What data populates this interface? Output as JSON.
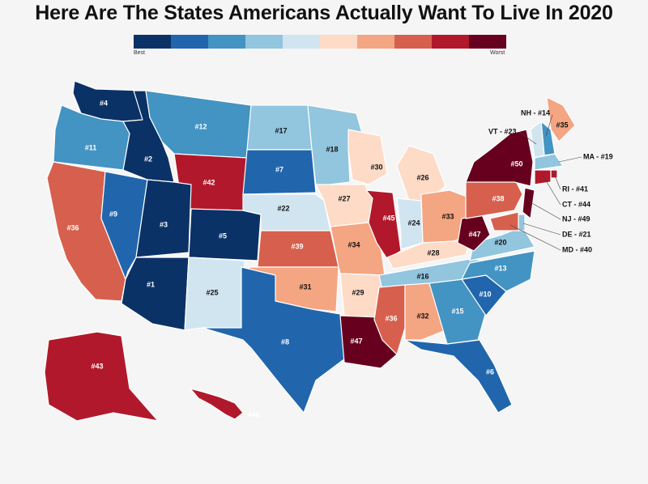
{
  "title": "Here Are The States Americans Actually Want To Live In 2020",
  "legend": {
    "best_label": "Best",
    "worst_label": "Worst",
    "colors": [
      "#0b3266",
      "#2166ac",
      "#4393c3",
      "#92c5de",
      "#d1e5f0",
      "#fddbc7",
      "#f4a582",
      "#d6604d",
      "#b2182b",
      "#67001f"
    ]
  },
  "states": [
    {
      "code": "WA",
      "label": "#4",
      "rank": 4,
      "color": "#0b3266"
    },
    {
      "code": "OR",
      "label": "#11",
      "rank": 11,
      "color": "#4393c3"
    },
    {
      "code": "CA",
      "label": "#36",
      "rank": 36,
      "color": "#d6604d"
    },
    {
      "code": "NV",
      "label": "#9",
      "rank": 9,
      "color": "#2166ac"
    },
    {
      "code": "ID",
      "label": "#2",
      "rank": 2,
      "color": "#0b3266"
    },
    {
      "code": "MT",
      "label": "#12",
      "rank": 12,
      "color": "#4393c3"
    },
    {
      "code": "WY",
      "label": "#42",
      "rank": 42,
      "color": "#b2182b"
    },
    {
      "code": "UT",
      "label": "#3",
      "rank": 3,
      "color": "#0b3266"
    },
    {
      "code": "CO",
      "label": "#5",
      "rank": 5,
      "color": "#0b3266"
    },
    {
      "code": "AZ",
      "label": "#1",
      "rank": 1,
      "color": "#0b3266"
    },
    {
      "code": "NM",
      "label": "#25",
      "rank": 25,
      "color": "#d1e5f0"
    },
    {
      "code": "ND",
      "label": "#17",
      "rank": 17,
      "color": "#92c5de"
    },
    {
      "code": "SD",
      "label": "#7",
      "rank": 7,
      "color": "#2166ac"
    },
    {
      "code": "NE",
      "label": "#22",
      "rank": 22,
      "color": "#d1e5f0"
    },
    {
      "code": "KS",
      "label": "#39",
      "rank": 39,
      "color": "#d6604d"
    },
    {
      "code": "OK",
      "label": "#31",
      "rank": 31,
      "color": "#f4a582"
    },
    {
      "code": "TX",
      "label": "#8",
      "rank": 8,
      "color": "#2166ac"
    },
    {
      "code": "MN",
      "label": "#18",
      "rank": 18,
      "color": "#92c5de"
    },
    {
      "code": "IA",
      "label": "#27",
      "rank": 27,
      "color": "#fddbc7"
    },
    {
      "code": "MO",
      "label": "#34",
      "rank": 34,
      "color": "#f4a582"
    },
    {
      "code": "AR",
      "label": "#29",
      "rank": 29,
      "color": "#fddbc7"
    },
    {
      "code": "LA",
      "label": "#47",
      "rank": 47,
      "color": "#67001f"
    },
    {
      "code": "WI",
      "label": "#30",
      "rank": 30,
      "color": "#fddbc7"
    },
    {
      "code": "IL",
      "label": "#45",
      "rank": 45,
      "color": "#b2182b"
    },
    {
      "code": "MI",
      "label": "#26",
      "rank": 26,
      "color": "#fddbc7"
    },
    {
      "code": "IN",
      "label": "#24",
      "rank": 24,
      "color": "#d1e5f0"
    },
    {
      "code": "OH",
      "label": "#33",
      "rank": 33,
      "color": "#f4a582"
    },
    {
      "code": "KY",
      "label": "#28",
      "rank": 28,
      "color": "#fddbc7"
    },
    {
      "code": "TN",
      "label": "#16",
      "rank": 16,
      "color": "#92c5de"
    },
    {
      "code": "MS",
      "label": "#36",
      "rank": 36,
      "color": "#d6604d"
    },
    {
      "code": "AL",
      "label": "#32",
      "rank": 32,
      "color": "#f4a582"
    },
    {
      "code": "GA",
      "label": "#15",
      "rank": 15,
      "color": "#4393c3"
    },
    {
      "code": "FL",
      "label": "#6",
      "rank": 6,
      "color": "#2166ac"
    },
    {
      "code": "SC",
      "label": "#10",
      "rank": 10,
      "color": "#2166ac"
    },
    {
      "code": "NC",
      "label": "#13",
      "rank": 13,
      "color": "#4393c3"
    },
    {
      "code": "VA",
      "label": "#20",
      "rank": 20,
      "color": "#92c5de"
    },
    {
      "code": "WV",
      "label": "#47",
      "rank": 47,
      "color": "#67001f"
    },
    {
      "code": "PA",
      "label": "#38",
      "rank": 38,
      "color": "#d6604d"
    },
    {
      "code": "NY",
      "label": "#50",
      "rank": 50,
      "color": "#67001f"
    },
    {
      "code": "ME",
      "label": "#35",
      "rank": 35,
      "color": "#f4a582"
    },
    {
      "code": "AK",
      "label": "#43",
      "rank": 43,
      "color": "#b2182b"
    },
    {
      "code": "HI",
      "label": "#46",
      "rank": 46,
      "color": "#b2182b"
    },
    {
      "code": "NH",
      "label": "",
      "rank": 14,
      "color": "#4393c3"
    },
    {
      "code": "VT",
      "label": "",
      "rank": 23,
      "color": "#d1e5f0"
    },
    {
      "code": "MA",
      "label": "",
      "rank": 19,
      "color": "#92c5de"
    },
    {
      "code": "RI",
      "label": "",
      "rank": 41,
      "color": "#b2182b"
    },
    {
      "code": "CT",
      "label": "",
      "rank": 44,
      "color": "#b2182b"
    },
    {
      "code": "NJ",
      "label": "",
      "rank": 49,
      "color": "#67001f"
    },
    {
      "code": "DE",
      "label": "",
      "rank": 21,
      "color": "#92c5de"
    },
    {
      "code": "MD",
      "label": "",
      "rank": 40,
      "color": "#d6604d"
    }
  ],
  "side_labels": {
    "NH": "NH - #14",
    "VT": "VT - #23",
    "MA": "MA - #19",
    "RI": "RI - #41",
    "CT": "CT - #44",
    "NJ": "NJ - #49",
    "DE": "DE - #21",
    "MD": "MD - #40"
  }
}
